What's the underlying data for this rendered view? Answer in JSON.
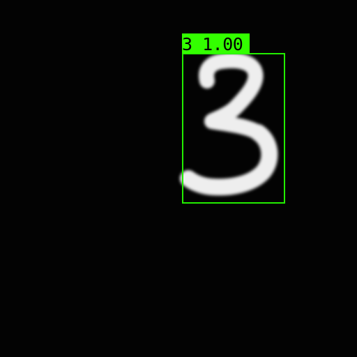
{
  "detection": {
    "label": "3 1.00",
    "class": "3",
    "confidence": "1.00",
    "box_color": "#22ee00",
    "label_bg_color": "#33ff00"
  },
  "image": {
    "background_color": "#000000",
    "digit_color": "#eeeeee"
  },
  "icons": {
    "digit": "handwritten-digit-three-icon"
  }
}
